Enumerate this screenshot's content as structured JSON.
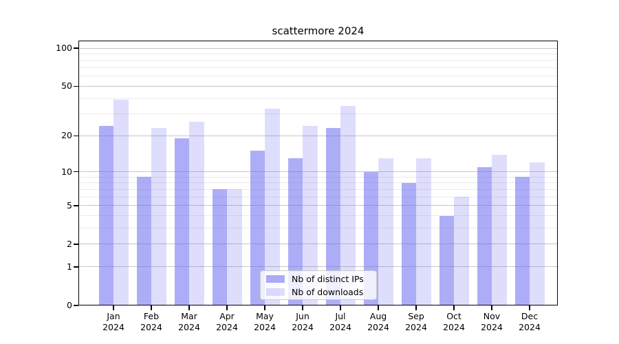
{
  "page_title": "scattermore 2024",
  "chart_data": {
    "type": "bar",
    "title": "scattermore 2024",
    "categories": [
      "Jan",
      "Feb",
      "Mar",
      "Apr",
      "May",
      "Jun",
      "Jul",
      "Aug",
      "Sep",
      "Oct",
      "Nov",
      "Dec"
    ],
    "category_year": "2024",
    "series": [
      {
        "name": "Nb of distinct IPs",
        "color": "rgba(105,105,240,0.55)",
        "values": [
          24,
          9,
          19,
          7,
          15,
          13,
          23,
          10,
          8,
          4,
          11,
          9
        ]
      },
      {
        "name": "Nb of downloads",
        "color": "rgba(105,105,240,0.22)",
        "values": [
          39,
          23,
          26,
          7,
          33,
          24,
          35,
          13,
          13,
          6,
          14,
          12
        ]
      }
    ],
    "yscale": "log1p",
    "ylim": [
      0,
      115
    ],
    "yticks_major": [
      0,
      1,
      2,
      5,
      10,
      20,
      50,
      100
    ],
    "yticks_minor": [
      3,
      4,
      6,
      7,
      8,
      9,
      30,
      40,
      60,
      70,
      80,
      90
    ],
    "grid": "horizontal, major and minor",
    "legend_position": "lower center",
    "colors": {
      "grid_major": "#c6c6c6",
      "grid_minor": "#eaeaea",
      "axis": "#000000"
    }
  }
}
